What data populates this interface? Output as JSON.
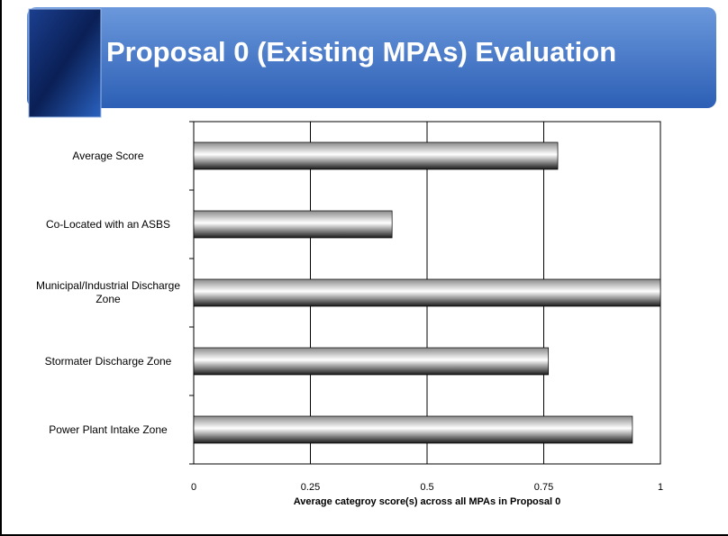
{
  "chart_data": {
    "type": "bar",
    "orientation": "horizontal",
    "title": "Proposal 0 (Existing MPAs) Evaluation",
    "x_label": "Average categroy score(s) across all MPAs in Proposal 0",
    "categories": [
      "Average Score",
      "Co-Located with an ASBS",
      "Municipal/Industrial Discharge Zone",
      "Stormater Discharge Zone",
      "Power Plant Intake Zone"
    ],
    "values": [
      0.78,
      0.425,
      1.0,
      0.76,
      0.94
    ],
    "color": "#808080",
    "xlim": [
      0,
      1
    ],
    "xticks": [
      0,
      0.25,
      0.5,
      0.75,
      1
    ],
    "grid": true
  }
}
